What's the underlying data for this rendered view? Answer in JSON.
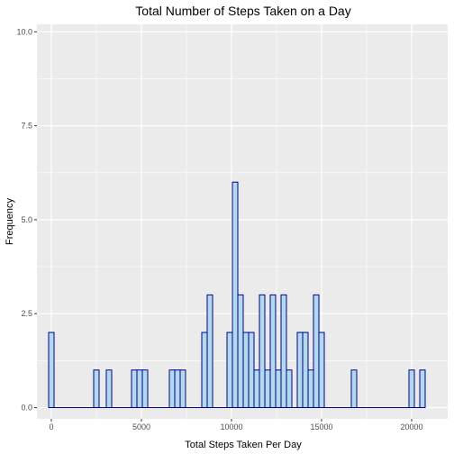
{
  "chart_data": {
    "type": "bar",
    "title": "Total Number of Steps Taken on a Day",
    "xlabel": "Total Steps Taken Per Day",
    "ylabel": "Frequency",
    "xlim": [
      -800,
      22000
    ],
    "ylim": [
      -0.3,
      10.2
    ],
    "bin_width": 300,
    "x_ticks": [
      0,
      5000,
      10000,
      15000,
      20000
    ],
    "x_tick_labels": [
      "0",
      "5000",
      "10000",
      "15000",
      "20000"
    ],
    "y_ticks": [
      0,
      2.5,
      5,
      7.5,
      10
    ],
    "y_tick_labels": [
      "0.0",
      "2.5",
      "5.0",
      "7.5",
      "10.0"
    ],
    "bins": [
      {
        "x": 0,
        "count": 2
      },
      {
        "x": 2500,
        "count": 1
      },
      {
        "x": 3200,
        "count": 1
      },
      {
        "x": 4600,
        "count": 1
      },
      {
        "x": 4900,
        "count": 1
      },
      {
        "x": 5200,
        "count": 1
      },
      {
        "x": 6700,
        "count": 1
      },
      {
        "x": 7000,
        "count": 1
      },
      {
        "x": 7300,
        "count": 1
      },
      {
        "x": 8500,
        "count": 2
      },
      {
        "x": 8800,
        "count": 3
      },
      {
        "x": 9900,
        "count": 2
      },
      {
        "x": 10200,
        "count": 6
      },
      {
        "x": 10500,
        "count": 3
      },
      {
        "x": 10800,
        "count": 2
      },
      {
        "x": 11100,
        "count": 2
      },
      {
        "x": 11400,
        "count": 1
      },
      {
        "x": 11700,
        "count": 3
      },
      {
        "x": 12000,
        "count": 1
      },
      {
        "x": 12300,
        "count": 3
      },
      {
        "x": 12600,
        "count": 1
      },
      {
        "x": 12900,
        "count": 3
      },
      {
        "x": 13200,
        "count": 1
      },
      {
        "x": 13800,
        "count": 2
      },
      {
        "x": 14100,
        "count": 2
      },
      {
        "x": 14400,
        "count": 1
      },
      {
        "x": 14700,
        "count": 3
      },
      {
        "x": 15000,
        "count": 2
      },
      {
        "x": 16800,
        "count": 1
      },
      {
        "x": 20000,
        "count": 1
      },
      {
        "x": 20600,
        "count": 1
      }
    ],
    "fill_color": "#b3d9ec",
    "stroke_color": "#00008b",
    "panel_color": "#ebebeb",
    "grid_color": "#ffffff",
    "grid": true,
    "legend": "none"
  }
}
